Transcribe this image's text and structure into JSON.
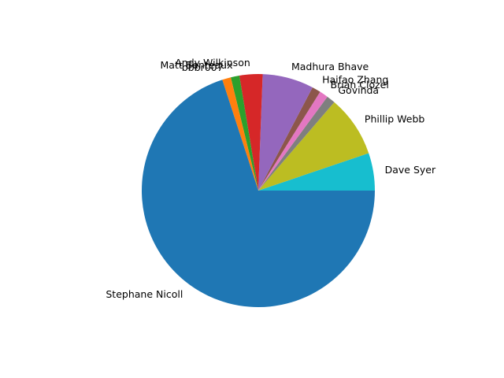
{
  "chart_data": {
    "type": "pie",
    "title": "",
    "start_angle_deg": 0,
    "direction": "counterclockwise",
    "slices": [
      {
        "label": "Dave Syer",
        "value": 5.2,
        "color": "#17becf"
      },
      {
        "label": "Phillip Webb",
        "value": 8.5,
        "color": "#bcbd22"
      },
      {
        "label": "Govinda",
        "value": 1.2,
        "color": "#7f7f7f"
      },
      {
        "label": "Brian Clozel",
        "value": 1.2,
        "color": "#e377c2"
      },
      {
        "label": "Haifao Zhang",
        "value": 1.2,
        "color": "#8c564b"
      },
      {
        "label": "Madhura Bhave",
        "value": 7.1,
        "color": "#9467bd"
      },
      {
        "label": "Andy Wilkinson",
        "value": 3.2,
        "color": "#d62728"
      },
      {
        "label": "Matt Benteaux",
        "value": 1.2,
        "color": "#2ca02c"
      },
      {
        "label": "bbbr007",
        "value": 1.2,
        "color": "#ff7f0e"
      },
      {
        "label": "Stephane Nicoll",
        "value": 70.0,
        "color": "#1f77b4"
      }
    ]
  }
}
